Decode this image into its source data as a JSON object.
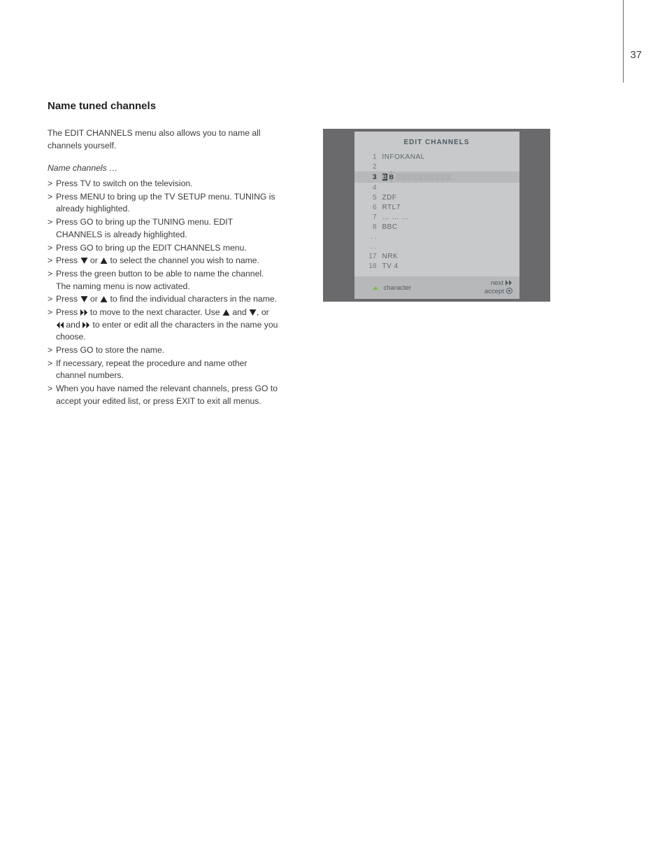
{
  "page_number": "37",
  "section_title": "Name tuned channels",
  "intro": "The EDIT CHANNELS menu also allows you to name all channels yourself.",
  "sub_head": "Name channels …",
  "steps": [
    {
      "pre": "Press ",
      "kw": "TV",
      "post": " to switch on the television."
    },
    {
      "pre": "Press ",
      "kw": "MENU",
      "post": " to bring up the TV SETUP menu. TUNING is already highlighted."
    },
    {
      "pre": "Press ",
      "kw": "GO",
      "post": " to bring up the TUNING menu. EDIT CHANNELS is already highlighted."
    },
    {
      "pre": "Press ",
      "kw": "GO",
      "post": " to bring up the EDIT CHANNELS menu."
    },
    {
      "type": "updown",
      "pre": "Press ",
      "post": " to select the channel you wish to name."
    },
    {
      "pre": "Press the green button to be able to name the channel. The naming menu is now activated.",
      "kw": "",
      "post": ""
    },
    {
      "type": "updown",
      "pre": "Press ",
      "post": " to find the individual characters in the name."
    },
    {
      "type": "nextchar",
      "pre": "Press ",
      "mid": " to move to the next character. Use ",
      "post": " to enter or edit all the characters in the name you choose."
    },
    {
      "pre": "Press ",
      "kw": "GO",
      "post": " to store the name."
    },
    {
      "pre": "If necessary, repeat the procedure and name other channel numbers.",
      "kw": "",
      "post": ""
    },
    {
      "type": "final",
      "pre": "When you have named the relevant channels, press ",
      "kw1": "GO",
      "mid": " to accept your edited list, or press ",
      "kw2": "EXIT",
      "post": " to exit all menus."
    }
  ],
  "osd": {
    "title": "EDIT  CHANNELS",
    "colors": {
      "outer": "#6a696b",
      "panel": "#c8c9cb",
      "sel_bg": "#b7b8ba",
      "text": "#5b686c",
      "dark": "#2e3a3f",
      "green": "#74c043"
    },
    "rows": [
      {
        "n": "1",
        "name": "INFOKANAL"
      },
      {
        "n": "2",
        "name": ""
      },
      {
        "n": "3",
        "name": "",
        "selected": true,
        "edit_letters": [
          "B",
          "B"
        ],
        "slots": 12
      },
      {
        "n": "4",
        "name": ""
      },
      {
        "n": "5",
        "name": "ZDF"
      },
      {
        "n": "6",
        "name": "RTL7"
      },
      {
        "n": "7",
        "name": "…  …  …"
      },
      {
        "n": "8",
        "name": "BBC"
      },
      {
        "n": ". .",
        "name": ""
      },
      {
        "n": ". .",
        "name": ""
      },
      {
        "n": "17",
        "name": "NRK"
      },
      {
        "n": "18",
        "name": "TV 4"
      }
    ],
    "footer": {
      "left_label": "character",
      "right_top": "next",
      "right_bottom": "accept"
    }
  }
}
